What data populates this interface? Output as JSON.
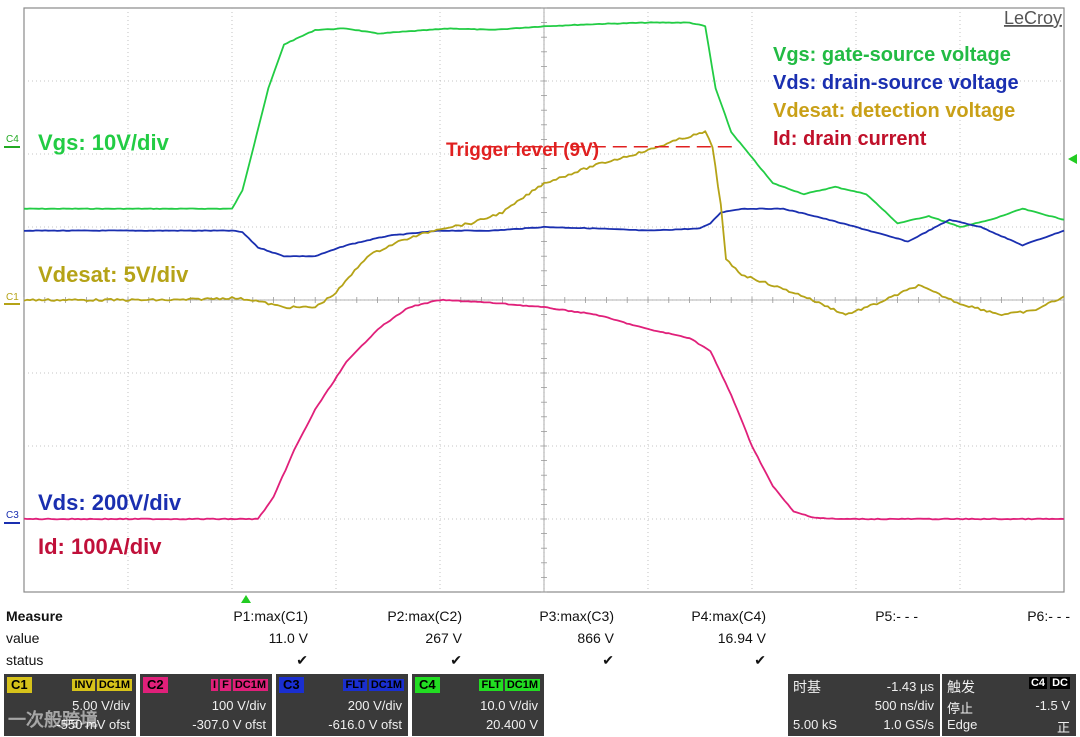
{
  "brand": "LeCroy",
  "colors": {
    "vgs": "#22cc44",
    "vds": "#1a2fb0",
    "vdesat": "#b5a317",
    "id": "#e0207a",
    "trigger": "#e02020",
    "grid": "#b4b4b4",
    "frame": "#8a8a8a"
  },
  "annotations": {
    "vgs_scale": "Vgs: 10V/div",
    "vdesat_scale": "Vdesat: 5V/div",
    "vds_scale": "Vds: 200V/div",
    "id_scale": "Id:  100A/div",
    "trigger_label": "Trigger level (9V)"
  },
  "channel_markers": [
    "C4",
    "C1",
    "C3"
  ],
  "chart_data": {
    "type": "line",
    "x_divisions": 10,
    "y_divisions": 8,
    "time_per_div": "500 ns/div",
    "grid": true,
    "legend_position": "top-right",
    "legend": [
      {
        "key": "vgs",
        "text": "Vgs: gate-source voltage"
      },
      {
        "key": "vds",
        "text": "Vds: drain-source voltage"
      },
      {
        "key": "vdesat",
        "text": "Vdesat: detection voltage"
      },
      {
        "key": "id",
        "text": "Id: drain current"
      }
    ],
    "trigger_level_div": 6.1,
    "series": [
      {
        "key": "vgs",
        "x": [
          0,
          2.0,
          2.1,
          2.35,
          2.5,
          2.8,
          3.1,
          3.4,
          3.7,
          4.1,
          4.5,
          5,
          5.5,
          6,
          6.4,
          6.55,
          6.65,
          6.8,
          7.0,
          7.2,
          7.5,
          7.8,
          8.1,
          8.4,
          8.7,
          9.0,
          9.3,
          9.6,
          10
        ],
        "y": [
          5.25,
          5.25,
          5.5,
          6.9,
          7.5,
          7.7,
          7.72,
          7.65,
          7.68,
          7.72,
          7.7,
          7.75,
          7.78,
          7.8,
          7.8,
          7.75,
          6.9,
          6.3,
          5.95,
          5.6,
          5.45,
          5.55,
          5.45,
          5.05,
          5.15,
          5.0,
          5.1,
          5.25,
          5.1
        ]
      },
      {
        "key": "vds",
        "x": [
          0,
          2.0,
          2.1,
          2.25,
          2.5,
          2.8,
          3.1,
          3.5,
          4,
          4.5,
          5,
          5.5,
          6,
          6.5,
          6.6,
          6.7,
          6.9,
          7.3,
          7.6,
          8.0,
          8.5,
          8.9,
          9.2,
          9.6,
          10
        ],
        "y": [
          4.95,
          4.95,
          4.93,
          4.72,
          4.6,
          4.6,
          4.75,
          4.88,
          4.95,
          4.95,
          5.0,
          4.98,
          4.95,
          4.98,
          5.05,
          5.2,
          5.25,
          5.25,
          5.15,
          5.0,
          4.8,
          5.1,
          5.0,
          4.75,
          4.95
        ]
      },
      {
        "key": "vdesat",
        "x": [
          0,
          1.5,
          2.0,
          2.2,
          2.5,
          2.8,
          3.0,
          3.3,
          3.6,
          4.0,
          4.3,
          4.6,
          5.0,
          5.5,
          6.0,
          6.3,
          6.55,
          6.62,
          6.7,
          6.75,
          6.9,
          7.1,
          7.5,
          7.9,
          8.2,
          8.6,
          9.0,
          9.4,
          9.7,
          10
        ],
        "y": [
          4.0,
          4.0,
          4.03,
          4.0,
          3.9,
          3.9,
          4.1,
          4.6,
          4.8,
          4.98,
          5.05,
          5.2,
          5.6,
          5.85,
          6.05,
          6.2,
          6.3,
          6.1,
          5.3,
          4.55,
          4.35,
          4.25,
          4.05,
          3.8,
          3.95,
          4.2,
          3.95,
          3.8,
          3.85,
          4.05
        ]
      },
      {
        "key": "id",
        "x": [
          0,
          2.25,
          2.4,
          2.6,
          2.8,
          3.1,
          3.4,
          3.7,
          4.0,
          4.3,
          4.6,
          5.0,
          5.5,
          6.0,
          6.4,
          6.6,
          6.8,
          7.0,
          7.2,
          7.4,
          7.6,
          7.8,
          8.0,
          8.5,
          9,
          10
        ],
        "y": [
          1.0,
          1.0,
          1.3,
          1.95,
          2.5,
          3.15,
          3.6,
          3.9,
          4.0,
          3.98,
          3.95,
          3.9,
          3.8,
          3.6,
          3.48,
          3.3,
          2.7,
          2.0,
          1.45,
          1.1,
          1.02,
          1.0,
          1.0,
          1.0,
          1.0,
          1.0
        ]
      }
    ]
  },
  "measure": {
    "header_label": "Measure",
    "value_label": "value",
    "status_label": "status",
    "params": [
      {
        "name": "P1:max(C1)",
        "value": "11.0 V",
        "status": "✔"
      },
      {
        "name": "P2:max(C2)",
        "value": "267 V",
        "status": "✔"
      },
      {
        "name": "P3:max(C3)",
        "value": "866 V",
        "status": "✔"
      },
      {
        "name": "P4:max(C4)",
        "value": "16.94 V",
        "status": "✔"
      },
      {
        "name": "P5:- - -",
        "value": "",
        "status": ""
      },
      {
        "name": "P6:- - -",
        "value": "",
        "status": ""
      }
    ]
  },
  "channels": [
    {
      "tag": "C1",
      "tag_color": "#d6c21a",
      "flags": [
        "INV",
        "DC1M"
      ],
      "flag_colors": [
        "#d6c21a",
        "#d6c21a"
      ],
      "vdiv": "5.00 V/div",
      "ofst": "-550 mV ofst"
    },
    {
      "tag": "C2",
      "tag_color": "#e0207a",
      "flags": [
        "I",
        "F",
        "DC1M"
      ],
      "flag_colors": [
        "#e0207a",
        "#e0207a",
        "#e0207a"
      ],
      "vdiv": "100 V/div",
      "ofst": "-307.0 V ofst"
    },
    {
      "tag": "C3",
      "tag_color": "#1a2fd0",
      "flags": [
        "FLT",
        "DC1M"
      ],
      "flag_colors": [
        "#1a2fd0",
        "#1a2fd0"
      ],
      "vdiv": "200 V/div",
      "ofst": "-616.0 V ofst"
    },
    {
      "tag": "C4",
      "tag_color": "#22dd22",
      "flags": [
        "FLT",
        "DC1M"
      ],
      "flag_colors": [
        "#22dd22",
        "#22dd22"
      ],
      "vdiv": "10.0 V/div",
      "ofst": "20.400 V"
    }
  ],
  "timebase": {
    "label": "时基",
    "delay": "-1.43 µs",
    "tdiv": "500 ns/div",
    "samples": "5.00 kS",
    "rate": "1.0 GS/s"
  },
  "trigger": {
    "label": "触发",
    "badges": [
      "C4",
      "DC"
    ],
    "level": "-1.5 V",
    "mode": "停止",
    "type": "Edge",
    "slope": "正"
  },
  "watermark": "一次般跨境"
}
